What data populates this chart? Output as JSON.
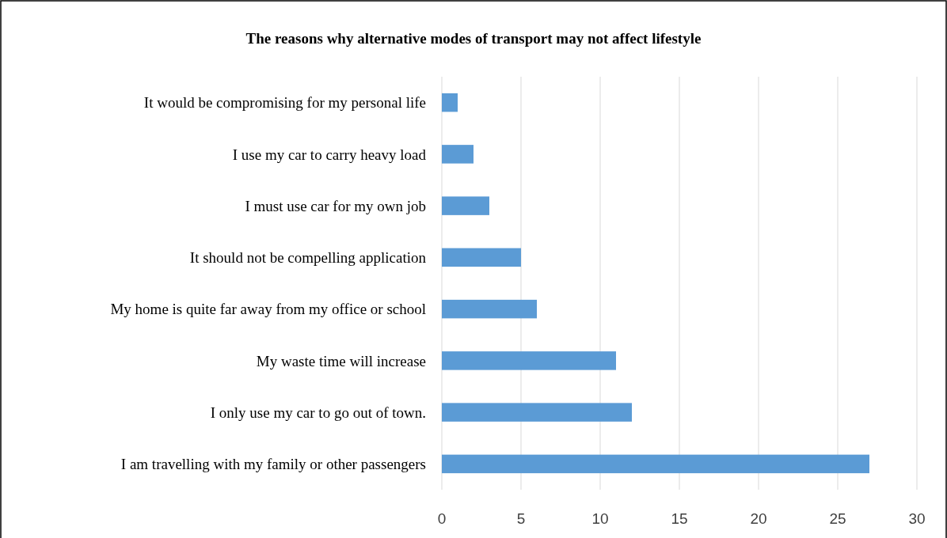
{
  "chart_data": {
    "type": "bar",
    "orientation": "horizontal",
    "title": "The reasons why alternative modes of transport may not affect lifestyle",
    "categories": [
      "It would be compromising for my personal life",
      "I use my car to carry heavy load",
      "I must use car for my own job",
      "It should not be compelling application",
      "My home is quite far away from my office or school",
      "My waste time will increase",
      "I only use my car to go out of town.",
      "I am travelling with my family or other passengers"
    ],
    "values": [
      1,
      2,
      3,
      5,
      6,
      11,
      12,
      27
    ],
    "color": "#5b9bd5",
    "xlim": [
      0,
      30
    ],
    "xticks": [
      0,
      5,
      10,
      15,
      20,
      25,
      30
    ],
    "grid": "x"
  }
}
